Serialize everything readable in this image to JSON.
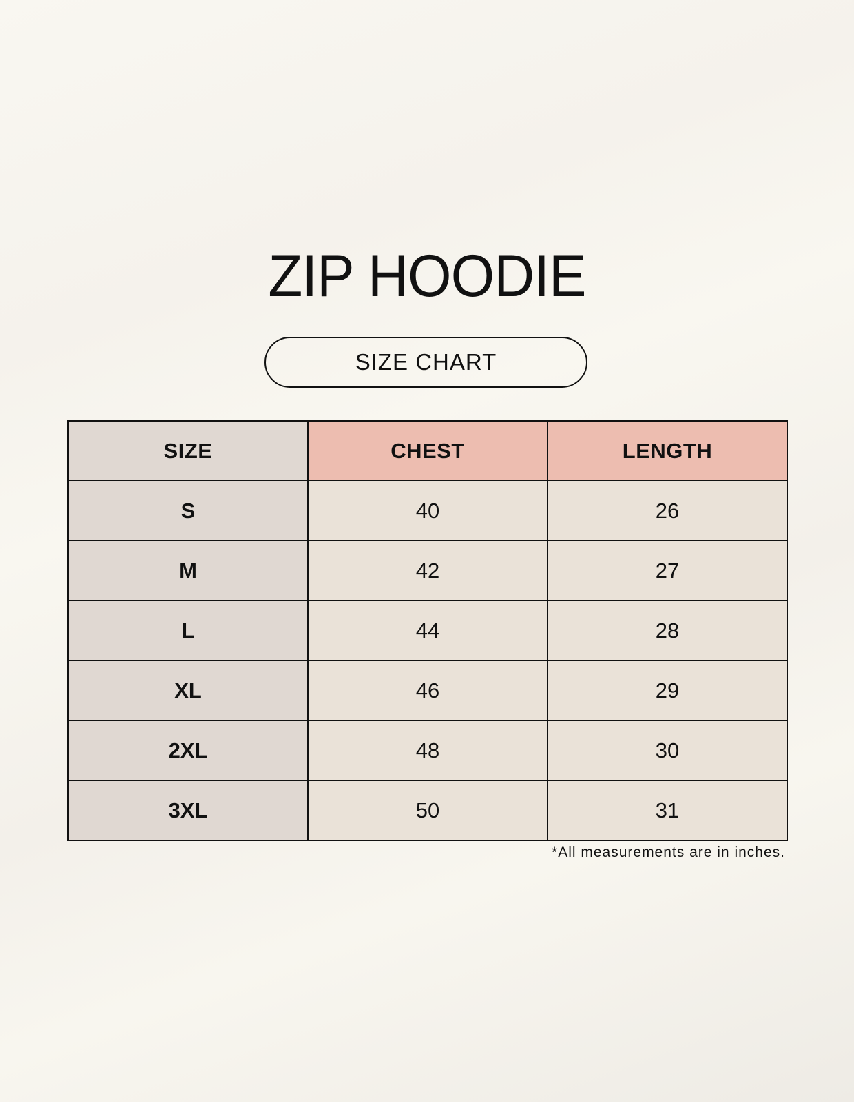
{
  "title": "ZIP HOODIE",
  "subtitle": "SIZE CHART",
  "table": {
    "headers": [
      "SIZE",
      "CHEST",
      "LENGTH"
    ],
    "rows": [
      [
        "S",
        "40",
        "26"
      ],
      [
        "M",
        "42",
        "27"
      ],
      [
        "L",
        "44",
        "28"
      ],
      [
        "XL",
        "46",
        "29"
      ],
      [
        "2XL",
        "48",
        "30"
      ],
      [
        "3XL",
        "50",
        "31"
      ]
    ]
  },
  "footnote": "*All measurements are in inches.",
  "colors": {
    "size_column": "#e0d8d2",
    "header_highlight": "#edbdb0",
    "cell": "#eae2d8"
  }
}
